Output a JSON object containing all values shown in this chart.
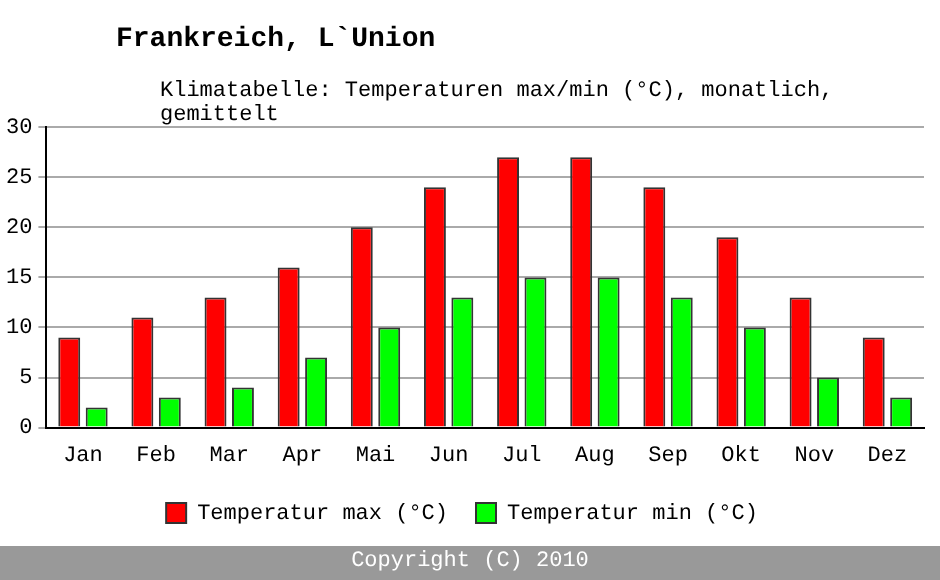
{
  "chart_data": {
    "type": "bar",
    "title": "Frankreich, L`Union",
    "subtitle": "Klimatabelle: Temperaturen max/min (°C), monatlich, gemittelt",
    "categories": [
      "Jan",
      "Feb",
      "Mar",
      "Apr",
      "Mai",
      "Jun",
      "Jul",
      "Aug",
      "Sep",
      "Okt",
      "Nov",
      "Dez"
    ],
    "series": [
      {
        "name": "Temperatur max (°C)",
        "color": "#ff0000",
        "values": [
          9,
          11,
          13,
          16,
          20,
          24,
          27,
          27,
          24,
          19,
          13,
          9
        ]
      },
      {
        "name": "Temperatur min (°C)",
        "color": "#00ff00",
        "values": [
          2,
          3,
          4,
          7,
          10,
          13,
          15,
          15,
          13,
          10,
          5,
          3
        ]
      }
    ],
    "ylim": [
      0,
      30
    ],
    "yticks": [
      0,
      5,
      10,
      15,
      20,
      25,
      30
    ],
    "grid": "y",
    "legend": "bottom",
    "annotations": [
      "Copyright (C) 2010"
    ]
  }
}
